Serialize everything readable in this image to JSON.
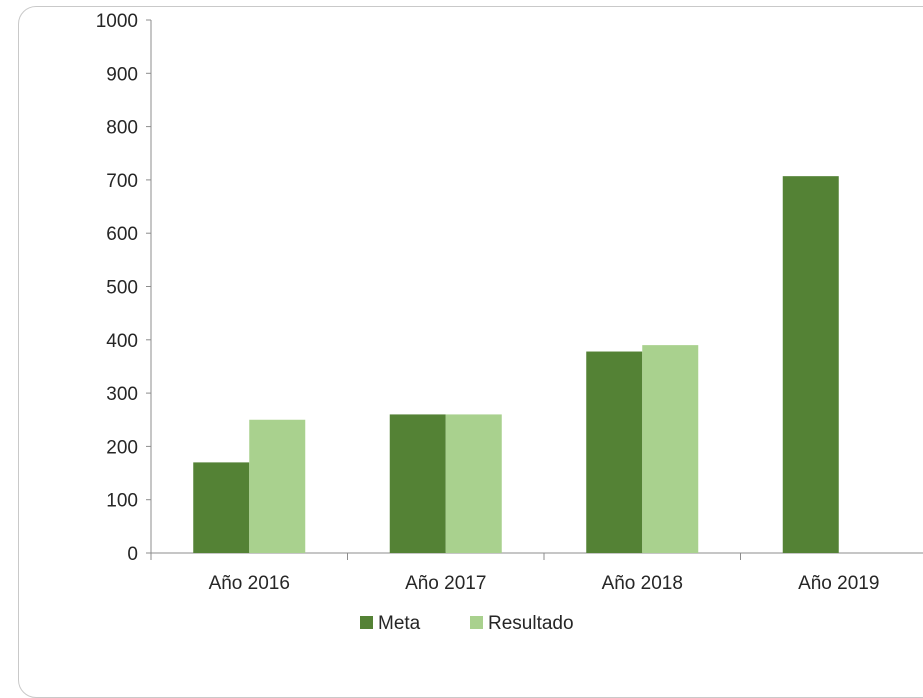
{
  "chart_data": {
    "type": "bar",
    "categories": [
      "Año 2016",
      "Año 2017",
      "Año 2018",
      "Año 2019"
    ],
    "series": [
      {
        "name": "Meta",
        "values": [
          170,
          260,
          378,
          707
        ],
        "color": "#548235"
      },
      {
        "name": "Resultado",
        "values": [
          250,
          260,
          390,
          null
        ],
        "color": "#a9d18e"
      }
    ],
    "ylim": [
      0,
      1000
    ],
    "yticks": [
      0,
      100,
      200,
      300,
      400,
      500,
      600,
      700,
      800,
      900,
      1000
    ],
    "grid": false,
    "legend": "bottom",
    "title": "",
    "xlabel": "",
    "ylabel": ""
  }
}
